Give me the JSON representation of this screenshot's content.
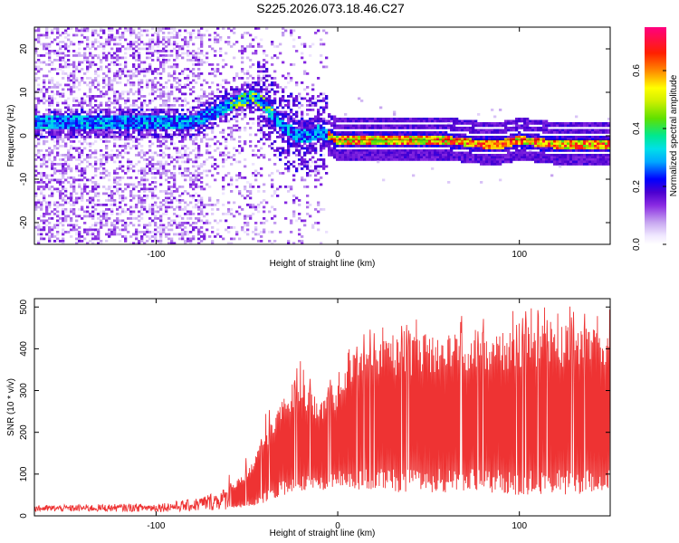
{
  "title": "S225.2026.073.18.46.C27",
  "chart_data": [
    {
      "type": "heatmap",
      "name": "spectrogram",
      "xlabel": "Height of straight line (km)",
      "ylabel": "Frequency (Hz)",
      "xlim": [
        -167,
        150
      ],
      "ylim": [
        -25,
        25
      ],
      "x_ticks": [
        -100,
        0,
        100
      ],
      "y_ticks": [
        -20,
        -10,
        0,
        10,
        20
      ],
      "colorbar": {
        "label": "Normalized spectral amplitude",
        "range": [
          0,
          0.75
        ],
        "ticks": [
          0.0,
          0.2,
          0.4,
          0.6
        ],
        "colors": [
          "#ffffff",
          "#c8a8f0",
          "#8a2be2",
          "#4b00d0",
          "#0000ff",
          "#00c8ff",
          "#00e8c0",
          "#60e000",
          "#ffff00",
          "#ff8800",
          "#ff0000",
          "#ff0080"
        ]
      },
      "ridge": [
        {
          "x": -140,
          "f": 3
        },
        {
          "x": -120,
          "f": 3
        },
        {
          "x": -100,
          "f": 3
        },
        {
          "x": -80,
          "f": 3
        },
        {
          "x": -65,
          "f": 6
        },
        {
          "x": -55,
          "f": 8
        },
        {
          "x": -45,
          "f": 9
        },
        {
          "x": -38,
          "f": 6
        },
        {
          "x": -30,
          "f": 2
        },
        {
          "x": -22,
          "f": 0
        },
        {
          "x": -15,
          "f": 0
        },
        {
          "x": -10,
          "f": 1
        },
        {
          "x": -5,
          "f": 0
        },
        {
          "x": 0,
          "f": -1
        },
        {
          "x": 20,
          "f": -1
        },
        {
          "x": 60,
          "f": -1
        },
        {
          "x": 80,
          "f": -2
        },
        {
          "x": 90,
          "f": -2
        },
        {
          "x": 100,
          "f": -1
        },
        {
          "x": 120,
          "f": -2
        },
        {
          "x": 150,
          "f": -2
        }
      ]
    },
    {
      "type": "line",
      "name": "snr",
      "xlabel": "Height of straight line (km)",
      "ylabel": "SNR (10 * v/v)",
      "xlim": [
        -167,
        150
      ],
      "ylim": [
        0,
        520
      ],
      "x_ticks": [
        -100,
        0,
        100
      ],
      "y_ticks": [
        0,
        100,
        200,
        300,
        400,
        500
      ],
      "color": "#ee3333",
      "envelope": {
        "x": [
          -167,
          -100,
          -80,
          -60,
          -50,
          -40,
          -30,
          -20,
          -10,
          0,
          10,
          20,
          40,
          60,
          80,
          100,
          120,
          150
        ],
        "upper": [
          25,
          30,
          40,
          70,
          110,
          200,
          300,
          330,
          280,
          320,
          400,
          420,
          430,
          440,
          440,
          450,
          460,
          450
        ],
        "lower": [
          10,
          10,
          10,
          15,
          20,
          30,
          50,
          55,
          60,
          70,
          60,
          60,
          55,
          55,
          55,
          50,
          50,
          50
        ]
      }
    }
  ]
}
